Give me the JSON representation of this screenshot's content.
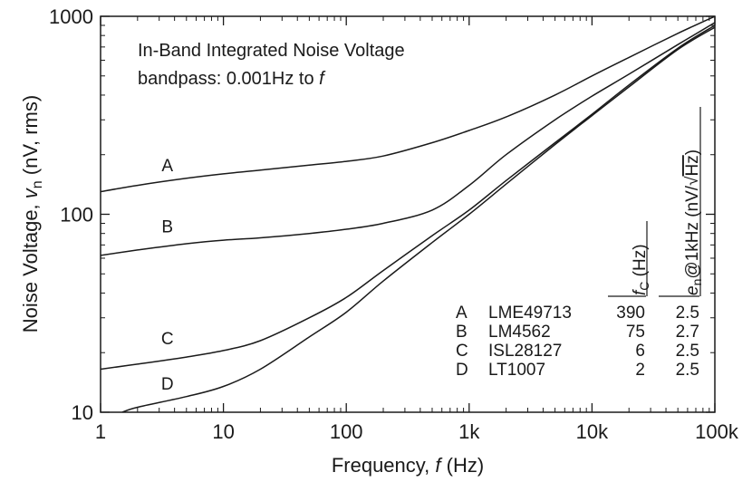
{
  "chart_data": {
    "type": "line",
    "xscale": "log",
    "yscale": "log",
    "xlim": [
      1,
      100000
    ],
    "ylim": [
      10,
      1000
    ],
    "grid": false,
    "xlabel": {
      "prefix": "Frequency, ",
      "var": "f",
      "unit": " (Hz)"
    },
    "ylabel": {
      "prefix": "Noise Voltage, ",
      "var": "v",
      "sub": "n",
      "unit": "  (nV, rms)"
    },
    "x_ticks": [
      {
        "value": 1,
        "label": "1"
      },
      {
        "value": 10,
        "label": "10"
      },
      {
        "value": 100,
        "label": "100"
      },
      {
        "value": 1000,
        "label": "1k"
      },
      {
        "value": 10000,
        "label": "10k"
      },
      {
        "value": 100000,
        "label": "100k"
      }
    ],
    "y_ticks": [
      {
        "value": 10,
        "label": "10"
      },
      {
        "value": 100,
        "label": "100"
      },
      {
        "value": 1000,
        "label": "1000"
      }
    ],
    "annotation": {
      "line1": "In-Band Integrated Noise Voltage",
      "line2_prefix": "bandpass: 0.001Hz to ",
      "line2_var": "f"
    },
    "series": [
      {
        "name": "A",
        "x": [
          1,
          2,
          5,
          10,
          20,
          50,
          100,
          200,
          500,
          1000,
          2000,
          5000,
          10000,
          20000,
          50000,
          100000
        ],
        "y": [
          130,
          140,
          152,
          160,
          167,
          177,
          185,
          197,
          230,
          265,
          310,
          400,
          500,
          620,
          820,
          1000
        ]
      },
      {
        "name": "B",
        "x": [
          1,
          2,
          5,
          10,
          20,
          50,
          100,
          200,
          500,
          1000,
          2000,
          5000,
          10000,
          20000,
          50000,
          100000
        ],
        "y": [
          62,
          66,
          71,
          74,
          76,
          80,
          84,
          90,
          105,
          140,
          200,
          300,
          395,
          510,
          720,
          930
        ]
      },
      {
        "name": "C",
        "x": [
          1,
          2,
          5,
          10,
          20,
          50,
          100,
          200,
          500,
          1000,
          2000,
          5000,
          10000,
          20000,
          50000,
          100000
        ],
        "y": [
          16.5,
          17.5,
          19,
          20.5,
          23,
          30,
          38,
          52,
          78,
          105,
          148,
          230,
          320,
          450,
          690,
          900
        ]
      },
      {
        "name": "D",
        "x": [
          1.5,
          2,
          5,
          10,
          20,
          50,
          100,
          200,
          500,
          1000,
          2000,
          5000,
          10000,
          20000,
          50000,
          100000
        ],
        "y": [
          10,
          10.6,
          12,
          13.5,
          16.5,
          24,
          32,
          46,
          72,
          100,
          142,
          225,
          315,
          440,
          680,
          880
        ]
      }
    ],
    "table": {
      "headers": {
        "fc_var": "f",
        "fc_sub": "C",
        "fc_unit": " (Hz)",
        "en_var": "e",
        "en_sub": "n",
        "en_mid": "@1kHz  (nV/",
        "en_sqrt": "√",
        "en_rad": "Hz",
        "en_end": ")"
      },
      "rows": [
        {
          "key": "A",
          "part": "LME49713",
          "fc": "390",
          "en": "2.5"
        },
        {
          "key": "B",
          "part": "LM4562",
          "fc": "75",
          "en": "2.7"
        },
        {
          "key": "C",
          "part": "ISL28127",
          "fc": "6",
          "en": "2.5"
        },
        {
          "key": "D",
          "part": "LT1007",
          "fc": "2",
          "en": "2.5"
        }
      ]
    },
    "curve_label_positions": [
      {
        "name": "A",
        "x": 3.5,
        "y": 165
      },
      {
        "name": "B",
        "x": 3.5,
        "y": 81
      },
      {
        "name": "C",
        "x": 3.5,
        "y": 22
      },
      {
        "name": "D",
        "x": 3.5,
        "y": 13
      }
    ]
  }
}
